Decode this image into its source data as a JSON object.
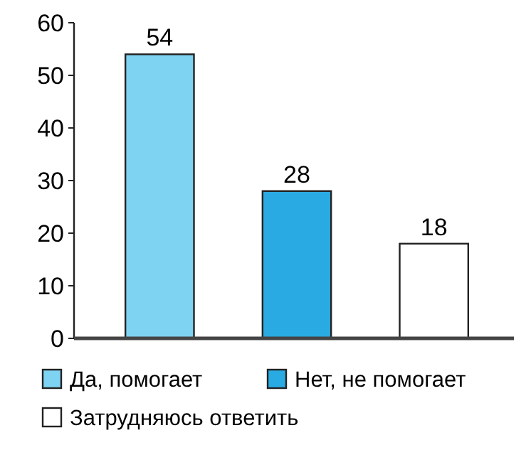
{
  "chart_data": {
    "type": "bar",
    "categories": [
      null,
      null,
      null
    ],
    "series": [
      {
        "name": "Да, помогает",
        "color": "#7fd3f2",
        "values": [
          54,
          null,
          null
        ]
      },
      {
        "name": "Нет, не помогает",
        "color": "#2aaae2",
        "values": [
          null,
          28,
          null
        ]
      },
      {
        "name": "Затрудняюсь ответить",
        "color": "#ffffff",
        "values": [
          null,
          null,
          18
        ]
      }
    ],
    "ylim": [
      0,
      60
    ],
    "yticks": [
      0,
      10,
      20,
      30,
      40,
      50,
      60
    ],
    "data_labels": true,
    "legend": "bottom",
    "grid": false
  }
}
